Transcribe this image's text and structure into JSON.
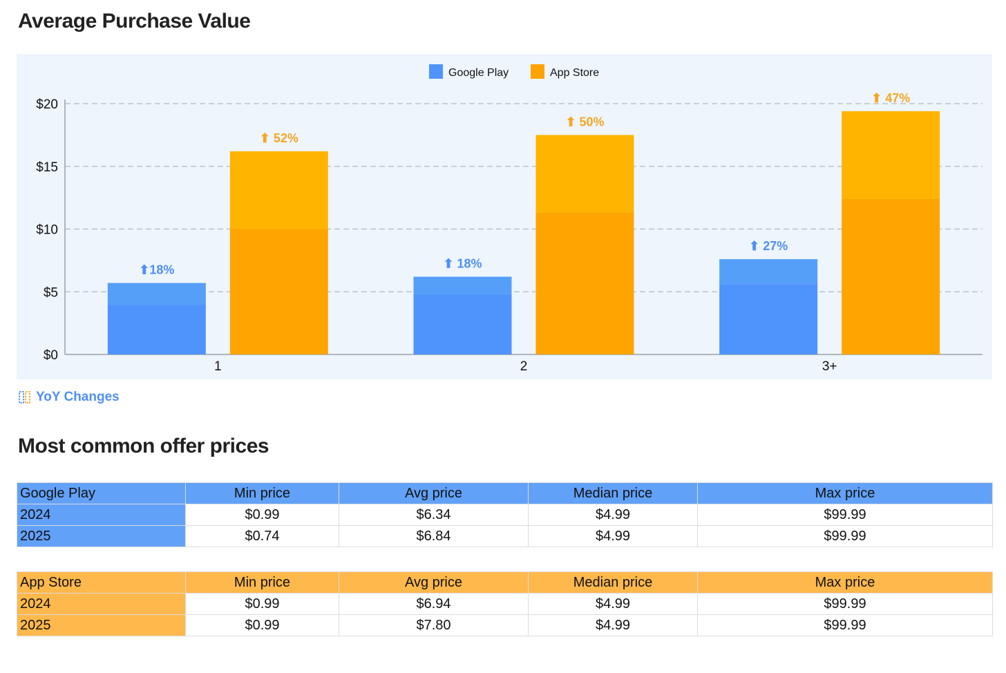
{
  "sections": {
    "chart_title": "Average Purchase Value",
    "table_title": "Most common offer prices",
    "yoy_link": "YoY Changes"
  },
  "colors": {
    "google_play_base": "#4f94fd",
    "google_play_top": "#559ff8",
    "app_store_base": "#ffa400",
    "app_store_top": "#ffb400",
    "google_play_label": "#4f8ff5",
    "app_store_label": "#f5a623"
  },
  "chart_data": {
    "type": "bar",
    "title": "Average Purchase Value",
    "categories": [
      "1",
      "2",
      "3+"
    ],
    "ylim": [
      0,
      20
    ],
    "yticks": [
      0,
      5,
      10,
      15,
      20
    ],
    "ytick_labels": [
      "$0",
      "$5",
      "$10",
      "$15",
      "$20"
    ],
    "grid": true,
    "legend_position": "top-center",
    "series": [
      {
        "name": "Google Play",
        "values_2025": [
          5.7,
          6.2,
          7.6
        ],
        "values_2024": [
          4.0,
          4.8,
          5.6
        ],
        "changes": [
          "⬆18%",
          "⬆ 18%",
          "⬆ 27%"
        ]
      },
      {
        "name": "App Store",
        "values_2025": [
          16.2,
          17.5,
          19.4
        ],
        "values_2024": [
          10.0,
          11.3,
          12.4
        ],
        "changes": [
          "⬆ 52%",
          "⬆ 50%",
          "⬆ 47%"
        ]
      }
    ]
  },
  "tables": [
    {
      "name": "Google Play",
      "columns": [
        "Min price",
        "Avg price",
        "Median price",
        "Max price"
      ],
      "rows": [
        {
          "year": "2024",
          "values": [
            "$0.99",
            "$6.34",
            "$4.99",
            "$99.99"
          ]
        },
        {
          "year": "2025",
          "values": [
            "$0.74",
            "$6.84",
            "$4.99",
            "$99.99"
          ]
        }
      ]
    },
    {
      "name": "App Store",
      "columns": [
        "Min price",
        "Avg price",
        "Median price",
        "Max price"
      ],
      "rows": [
        {
          "year": "2024",
          "values": [
            "$0.99",
            "$6.94",
            "$4.99",
            "$99.99"
          ]
        },
        {
          "year": "2025",
          "values": [
            "$0.99",
            "$7.80",
            "$4.99",
            "$99.99"
          ]
        }
      ]
    }
  ]
}
